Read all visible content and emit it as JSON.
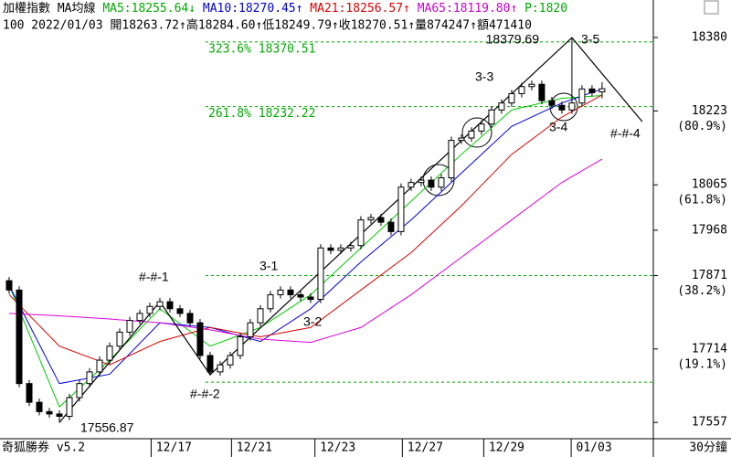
{
  "chart_data": {
    "type": "candlestick",
    "header_line1": [
      "加權指數 MA均線",
      "MA5:18255.64↓",
      "MA10:18270.45↑",
      "MA21:18256.57↑",
      "MA65:18119.80↑",
      "P:1820"
    ],
    "header_colors": [
      "#000000",
      "#00aa00",
      "#0000cc",
      "#dd0000",
      "#cc00cc",
      "#00aa00"
    ],
    "header_line2": "100 2022/01/03 開18263.72↑高18284.60↑低18249.79↑收18270.51↑量874247↑額471410",
    "footer_left": "奇狐勝券 v5.2",
    "footer_right": "30分鐘",
    "xlim": [
      -0.91,
      64.1
    ],
    "ylim": [
      17526,
      18425
    ],
    "xticks": [
      {
        "value": 16.4,
        "label": "12/17"
      },
      {
        "value": 24.4,
        "label": "12/21"
      },
      {
        "value": 32.7,
        "label": "12/23"
      },
      {
        "value": 41.4,
        "label": "12/27"
      },
      {
        "value": 49.5,
        "label": "12/29"
      },
      {
        "value": 58.2,
        "label": "01/03"
      }
    ],
    "yticks": [
      18380,
      18223,
      18065,
      17968,
      17871,
      17714,
      17557
    ],
    "ytick_notes": [
      {
        "value": 18223,
        "label": "(80.9%)"
      },
      {
        "value": 18065,
        "label": "(61.8%)"
      },
      {
        "value": 17871,
        "label": "(38.2%)"
      },
      {
        "value": 17714,
        "label": "(19.1%)"
      }
    ],
    "levels": [
      {
        "value": 18370.51,
        "label": "323.6% 18370.51"
      },
      {
        "value": 18232.22,
        "label": "261.8% 18232.22"
      },
      {
        "value": 17871
      },
      {
        "value": 17643
      }
    ],
    "level_color": "#00aa00",
    "candles": {
      "open": [
        17860,
        17840,
        17640,
        17600,
        17580,
        17575,
        17570,
        17610,
        17640,
        17665,
        17690,
        17720,
        17750,
        17775,
        17790,
        17805,
        17815,
        17800,
        17790,
        17770,
        17700,
        17665,
        17680,
        17700,
        17740,
        17770,
        17800,
        17830,
        17840,
        17830,
        17825,
        17820,
        17930,
        17925,
        17930,
        17935,
        17990,
        17995,
        17985,
        17965,
        18060,
        18070,
        18075,
        18060,
        18080,
        18160,
        18165,
        18180,
        18195,
        18225,
        18240,
        18260,
        18275,
        18280,
        18245,
        18235,
        18225,
        18240,
        18270,
        18263.72
      ],
      "high": [
        17868,
        17848,
        17648,
        17608,
        17588,
        17583,
        17618,
        17648,
        17673,
        17698,
        17728,
        17758,
        17783,
        17798,
        17813,
        17823,
        17823,
        17808,
        17798,
        17778,
        17708,
        17688,
        17708,
        17748,
        17778,
        17808,
        17838,
        17848,
        17848,
        17838,
        17833,
        17938,
        17938,
        17938,
        17943,
        17998,
        18003,
        18003,
        17993,
        18068,
        18078,
        18083,
        18083,
        18088,
        18168,
        18173,
        18188,
        18203,
        18233,
        18248,
        18268,
        18283,
        18288,
        18288,
        18253,
        18243,
        18379.69,
        18278,
        18278,
        18284.6
      ],
      "low": [
        17832,
        17632,
        17592,
        17572,
        17567,
        17556.87,
        17562,
        17602,
        17632,
        17657,
        17682,
        17712,
        17742,
        17767,
        17782,
        17797,
        17792,
        17782,
        17762,
        17692,
        17657,
        17657,
        17672,
        17692,
        17732,
        17762,
        17792,
        17822,
        17822,
        17817,
        17812,
        17812,
        17917,
        17917,
        17922,
        17927,
        17982,
        17977,
        17957,
        17957,
        18052,
        18062,
        18052,
        18052,
        18072,
        18152,
        18157,
        18172,
        18187,
        18217,
        18232,
        18252,
        18267,
        18237,
        18227,
        18217,
        18217,
        18232,
        18254,
        18249.79
      ],
      "close": [
        17840,
        17640,
        17600,
        17580,
        17575,
        17570,
        17610,
        17640,
        17665,
        17690,
        17720,
        17750,
        17775,
        17790,
        17805,
        17815,
        17800,
        17790,
        17770,
        17700,
        17665,
        17680,
        17700,
        17740,
        17770,
        17800,
        17830,
        17840,
        17830,
        17825,
        17820,
        17930,
        17925,
        17930,
        17935,
        17990,
        17995,
        17985,
        17965,
        18060,
        18070,
        18075,
        18060,
        18080,
        18160,
        18165,
        18180,
        18195,
        18225,
        18240,
        18260,
        18275,
        18280,
        18245,
        18235,
        18225,
        18240,
        18270,
        18262,
        18270.51
      ]
    },
    "ma_x": [
      0,
      5,
      10,
      15,
      20,
      25,
      30,
      35,
      40,
      45,
      50,
      55,
      59
    ],
    "series": [
      {
        "name": "MA5",
        "color": "#00cc00",
        "values": [
          17850,
          17590,
          17690,
          17800,
          17720,
          17760,
          17830,
          17930,
          18030,
          18130,
          18225,
          18250,
          18256
        ]
      },
      {
        "name": "MA10",
        "color": "#0000dd",
        "values": [
          17850,
          17640,
          17660,
          17770,
          17760,
          17730,
          17800,
          17900,
          17990,
          18090,
          18190,
          18240,
          18270
        ]
      },
      {
        "name": "MA21",
        "color": "#dd0000",
        "values": [
          17830,
          17720,
          17680,
          17730,
          17760,
          17740,
          17760,
          17840,
          17920,
          18020,
          18130,
          18210,
          18257
        ]
      },
      {
        "name": "MA65",
        "color": "#dd00dd",
        "values": [
          17790,
          17785,
          17778,
          17770,
          17755,
          17735,
          17728,
          17760,
          17830,
          17910,
          17990,
          18070,
          18120
        ]
      }
    ],
    "wave": {
      "x": [
        5,
        15,
        20,
        56,
        63
      ],
      "values": [
        17556.87,
        17815,
        17659,
        18379.69,
        18200
      ]
    },
    "annotations": [
      "18379.69",
      "3-5",
      "3-3",
      "3-4",
      "#-#-4",
      "3-1",
      "3-2",
      "#-#-1",
      "#-#-2",
      "17556.87"
    ]
  }
}
